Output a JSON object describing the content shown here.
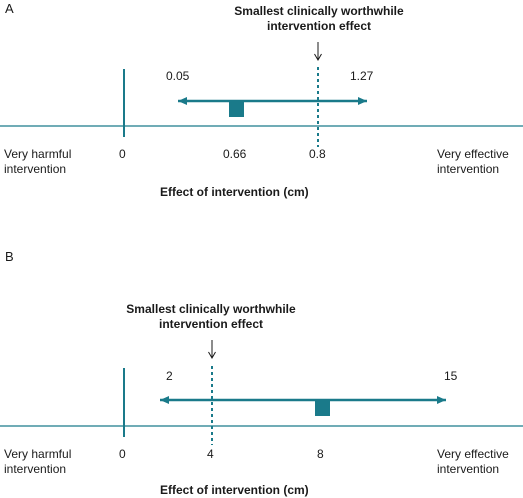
{
  "colors": {
    "teal": "#1a7a8a",
    "text": "#1a1a1a"
  },
  "panels": [
    {
      "label": "A",
      "mcid_label": "Smallest clinically worthwhile intervention effect",
      "x_axis_title": "Effect of intervention (cm)",
      "left_end_label": "Very harmful intervention",
      "right_end_label": "Very effective intervention",
      "ticks": [
        "0",
        "0.66",
        "0.8"
      ],
      "ci_lower_label": "0.05",
      "ci_upper_label": "1.27",
      "values": {
        "null": 0,
        "point_estimate": 0.66,
        "mcid": 0.8,
        "ci_lower": 0.05,
        "ci_upper": 1.27
      }
    },
    {
      "label": "B",
      "mcid_label": "Smallest clinically worthwhile intervention effect",
      "x_axis_title": "Effect of intervention (cm)",
      "left_end_label": "Very harmful intervention",
      "right_end_label": "Very effective intervention",
      "ticks": [
        "0",
        "4",
        "8"
      ],
      "ci_lower_label": "2",
      "ci_upper_label": "15",
      "values": {
        "null": 0,
        "point_estimate": 8,
        "mcid": 4,
        "ci_lower": 2,
        "ci_upper": 15
      }
    }
  ]
}
